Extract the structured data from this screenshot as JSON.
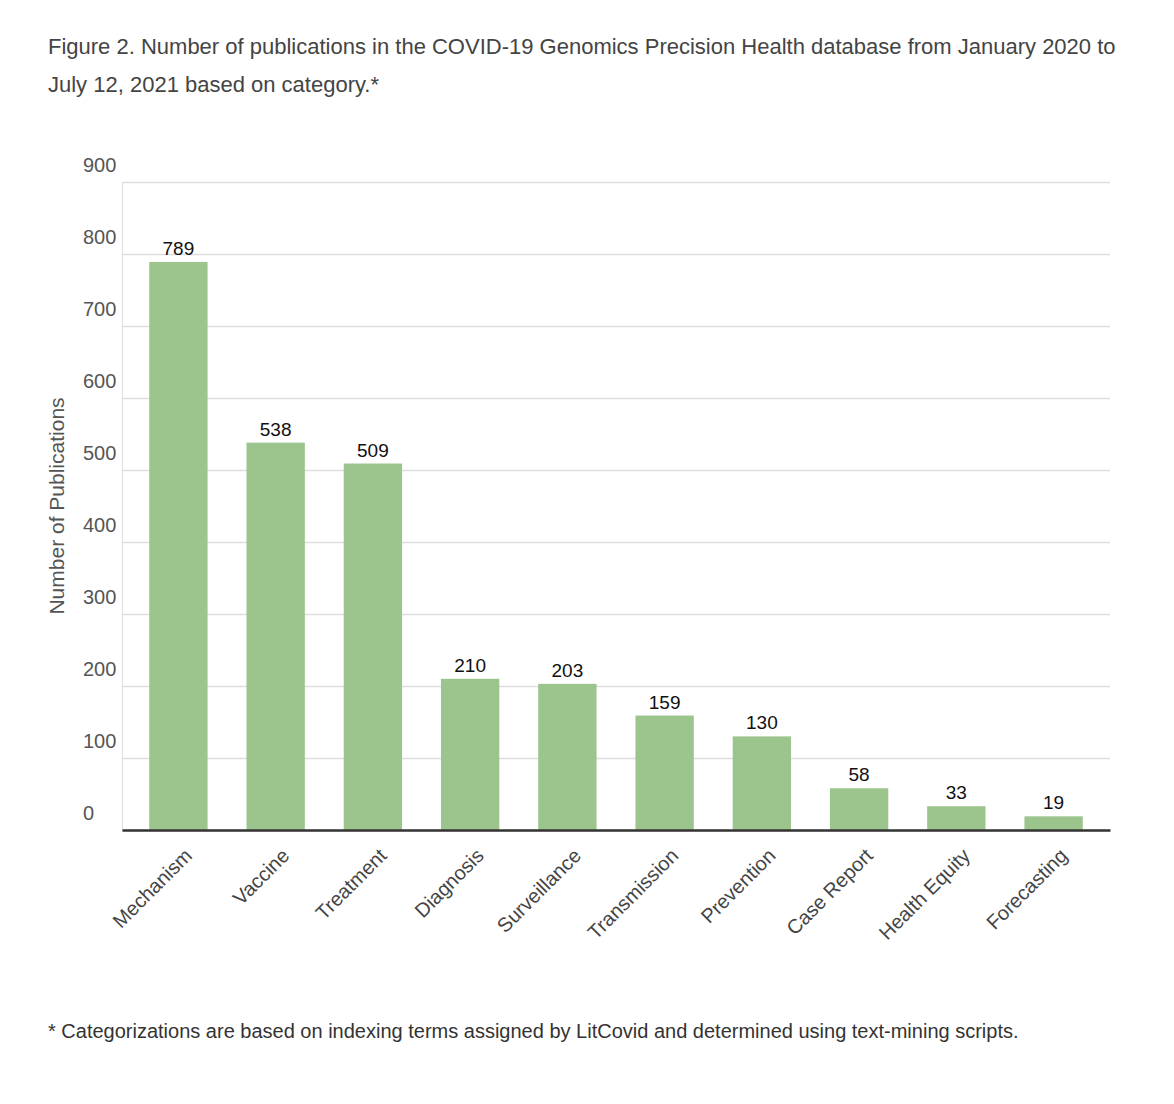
{
  "chart_data": {
    "type": "bar",
    "title": "Figure 2. Number of publications in the COVID-19 Genomics Precision Health database from January 2020 to July 12, 2021 based on category.*",
    "footnote": "* Categorizations are based on indexing terms assigned by LitCovid and determined using text-mining scripts.",
    "y_label": "Number of Publications",
    "categories": [
      "Mechanism",
      "Vaccine",
      "Treatment",
      "Diagnosis",
      "Surveillance",
      "Transmission",
      "Prevention",
      "Case Report",
      "Health Equity",
      "Forecasting"
    ],
    "values": [
      789,
      538,
      509,
      210,
      203,
      159,
      130,
      58,
      33,
      19
    ],
    "color": "#9bc58d",
    "ylim": [
      0,
      900
    ],
    "yticks": [
      0,
      100,
      200,
      300,
      400,
      500,
      600,
      700,
      800,
      900
    ],
    "grid": true,
    "data_labels": true
  }
}
